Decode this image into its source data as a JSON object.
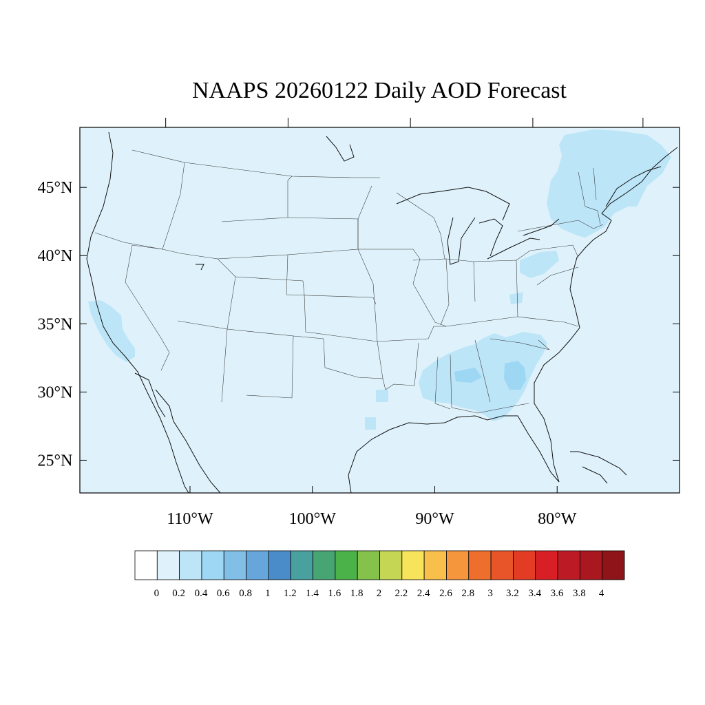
{
  "title": "NAAPS 20260122 Daily AOD Forecast",
  "map": {
    "region": "Continental United States",
    "projection": "cylindrical equidistant",
    "lon_range": [
      -119,
      -70
    ],
    "lat_range": [
      22.6,
      49.4
    ],
    "base_color": "#dff2fb",
    "coast_color": "#111111",
    "border_color": "#333333"
  },
  "lat_axis": {
    "labels": [
      "25°N",
      "30°N",
      "35°N",
      "40°N",
      "45°N"
    ],
    "values": [
      25,
      30,
      35,
      40,
      45
    ]
  },
  "lon_axis": {
    "labels": [
      "110°W",
      "100°W",
      "90°W",
      "80°W"
    ],
    "values": [
      -110,
      -100,
      -90,
      -80
    ]
  },
  "colorbar": {
    "labels": [
      "0",
      "0.2",
      "0.4",
      "0.6",
      "0.8",
      "1",
      "1.2",
      "1.4",
      "1.6",
      "1.8",
      "2",
      "2.2",
      "2.4",
      "2.6",
      "2.8",
      "3",
      "3.2",
      "3.4",
      "3.6",
      "3.8",
      "4"
    ],
    "colors": [
      "#ffffff",
      "#dff2fb",
      "#bde5f8",
      "#9ed7f3",
      "#82bfe6",
      "#67a6da",
      "#4a8cc9",
      "#48a09f",
      "#46a573",
      "#4bb249",
      "#84c24b",
      "#c4d653",
      "#f7e45b",
      "#f8c04b",
      "#f6963c",
      "#ee6e2e",
      "#e85528",
      "#e33c24",
      "#d91f26",
      "#bc1b25",
      "#a9171f",
      "#8e1419"
    ]
  },
  "aod_regions": [
    {
      "name": "Northeast / New England",
      "level": 0.2
    },
    {
      "name": "Southern California",
      "level": 0.2
    },
    {
      "name": "Southeast (Georgia / Alabama / South Carolina)",
      "level": 0.2
    },
    {
      "name": "Central South Carolina",
      "level": 0.4
    },
    {
      "name": "East Texas",
      "level": 0.2
    }
  ]
}
